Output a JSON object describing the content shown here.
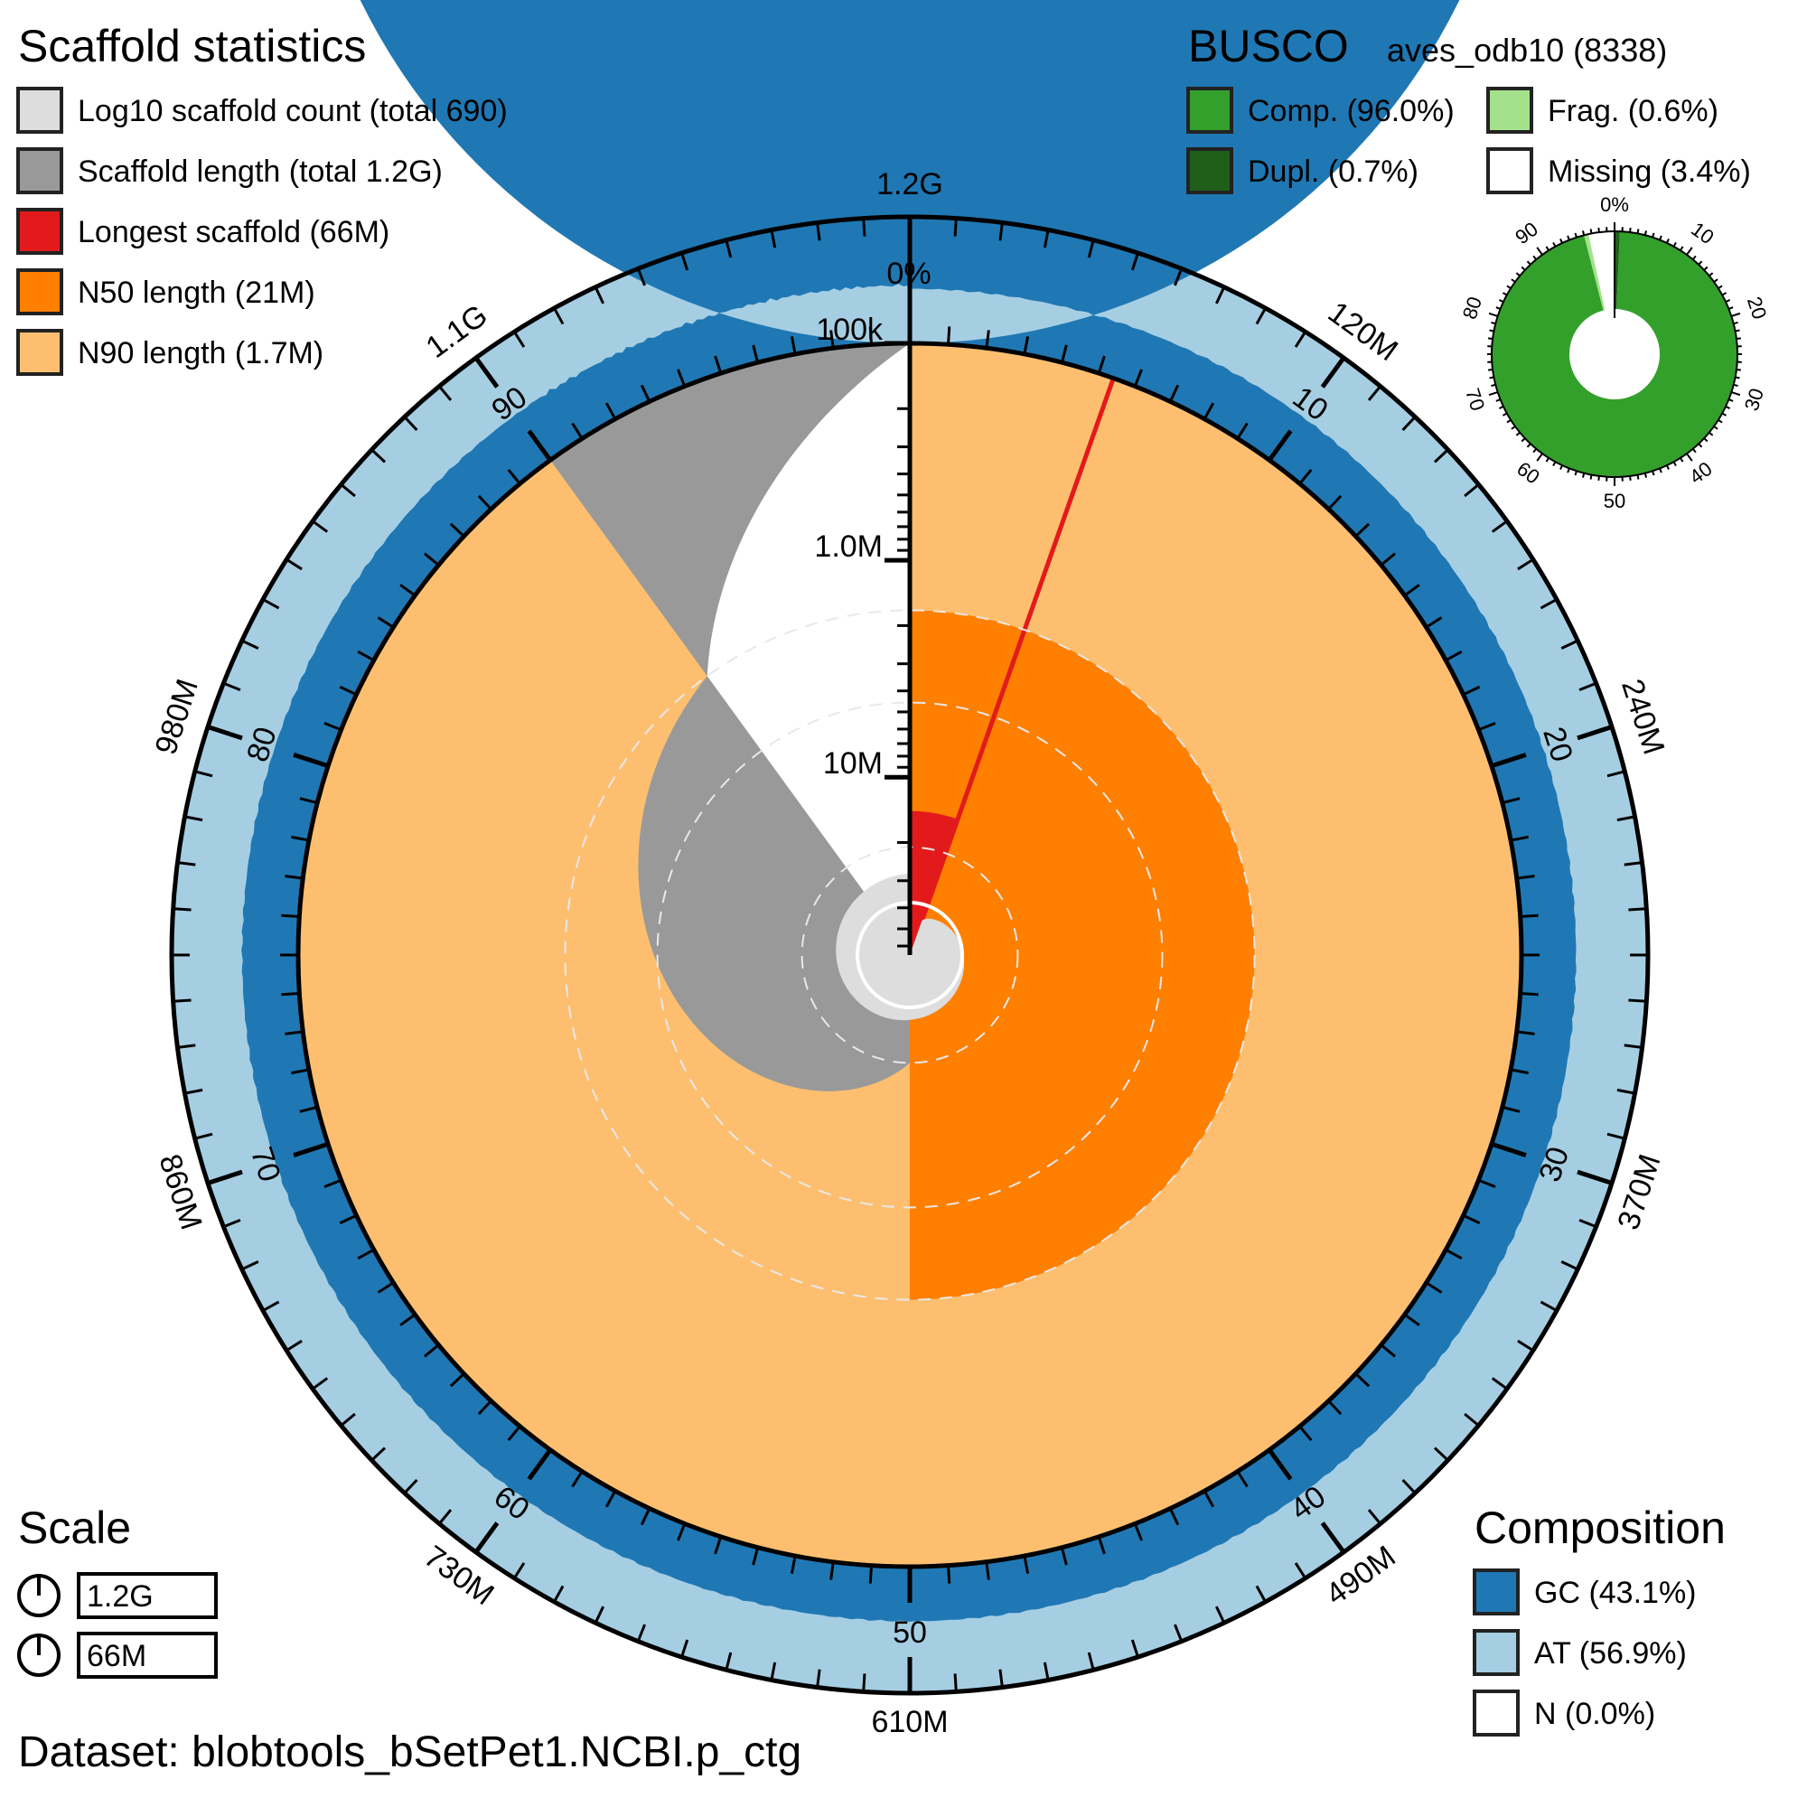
{
  "chart_data": {
    "type": "snail",
    "dataset": "Dataset: blobtools_bSetPet1.NCBI.p_ctg",
    "scaffold_statistics": {
      "title": "Scaffold statistics",
      "legend": [
        {
          "label": "Log10 scaffold count (total 690)",
          "color": "#dddddd"
        },
        {
          "label": "Scaffold length (total 1.2G)",
          "color": "#999999"
        },
        {
          "label": "Longest scaffold (66M)",
          "color": "#e31a1c"
        },
        {
          "label": "N50 length (21M)",
          "color": "#ff7f00"
        },
        {
          "label": "N90 length (1.7M)",
          "color": "#fdbf6f"
        }
      ],
      "total_scaffolds": 690,
      "total_length_bp": 1230000000,
      "longest_scaffold_bp": 66000000,
      "n50_bp": 21000000,
      "n90_bp": 1700000,
      "n50_percent": 50,
      "n90_percent": 90,
      "longest_percent": 5.4
    },
    "busco": {
      "title": "BUSCO",
      "lineage": "aves_odb10 (8338)",
      "legend": [
        {
          "label": "Comp. (96.0%)",
          "color": "#33a02c"
        },
        {
          "label": "Frag. (0.6%)",
          "color": "#a3e28a"
        },
        {
          "label": "Dupl. (0.7%)",
          "color": "#1f5f1a"
        },
        {
          "label": "Missing (3.4%)",
          "color": "#ffffff"
        }
      ],
      "complete_percent": 96.0,
      "duplicated_percent": 0.7,
      "fragmented_percent": 0.6,
      "missing_percent": 3.4,
      "ticks": [
        "0%",
        "10",
        "20",
        "30",
        "40",
        "50",
        "60",
        "70",
        "80",
        "90"
      ]
    },
    "composition": {
      "title": "Composition",
      "legend": [
        {
          "label": "GC (43.1%)",
          "color": "#1f78b4"
        },
        {
          "label": "AT (56.9%)",
          "color": "#a6cee3"
        },
        {
          "label": "N (0.0%)",
          "color": "#ffffff"
        }
      ],
      "gc_percent": 43.1,
      "at_percent": 56.9,
      "n_percent": 0.0
    },
    "scale": {
      "title": "Scale",
      "items": [
        "1.2G",
        "66M"
      ]
    },
    "outer_axis_labels": [
      "1.2G",
      "120M",
      "240M",
      "370M",
      "490M",
      "610M",
      "730M",
      "860M",
      "980M",
      "1.1G"
    ],
    "inner_axis_labels": [
      "0%",
      "10",
      "20",
      "30",
      "40",
      "50",
      "60",
      "70",
      "80",
      "90"
    ],
    "radial_axis_labels": [
      "100k",
      "1.0M",
      "10M"
    ],
    "colors": {
      "gc": "#1f78b4",
      "at": "#a6cee3",
      "scaffold": "#999999",
      "count": "#dddddd",
      "longest": "#e31a1c",
      "n50": "#ff7f00",
      "n90": "#fdbf6f"
    }
  }
}
